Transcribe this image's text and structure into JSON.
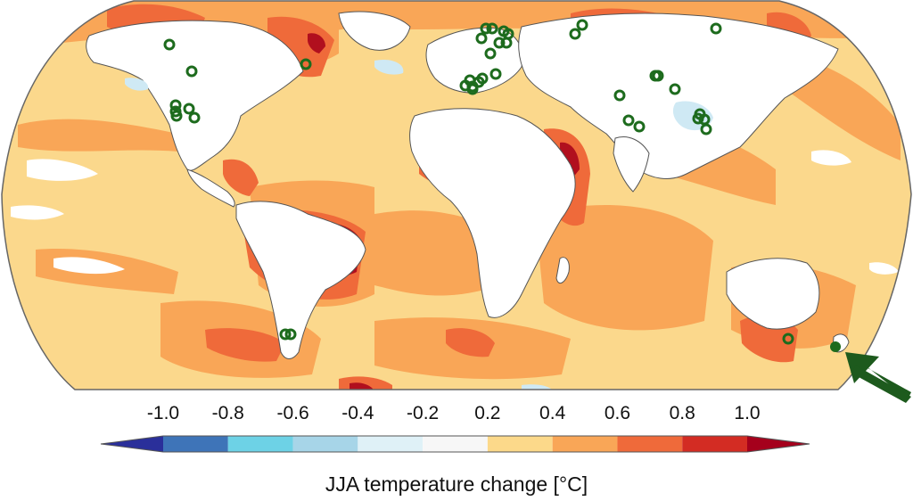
{
  "colors": {
    "ocean_base": "#fbd88c",
    "land_neutral": "#ffffff",
    "coast": "#555555",
    "marker": "#1d6b1d",
    "arrow": "#1d5a1d"
  },
  "map": {
    "projection": "Robinson",
    "variable": "JJA temperature change",
    "units": "°C",
    "marker_style": "open-circle",
    "highlight_marker": "filled-circle with pointing arrow"
  },
  "colorbar": {
    "ticks": [
      "-1.0",
      "-0.8",
      "-0.6",
      "-0.4",
      "-0.2",
      "0.2",
      "0.4",
      "0.6",
      "0.8",
      "1.0"
    ],
    "colors": [
      "#2a2f9a",
      "#3e74b8",
      "#6dd2e6",
      "#a7d5e8",
      "#dff1f7",
      "#f7f7f7",
      "#fcd98a",
      "#f9a657",
      "#ef6a3a",
      "#d32c23",
      "#a5001c"
    ],
    "extend": "both",
    "title": "JJA temperature change [°C]"
  }
}
